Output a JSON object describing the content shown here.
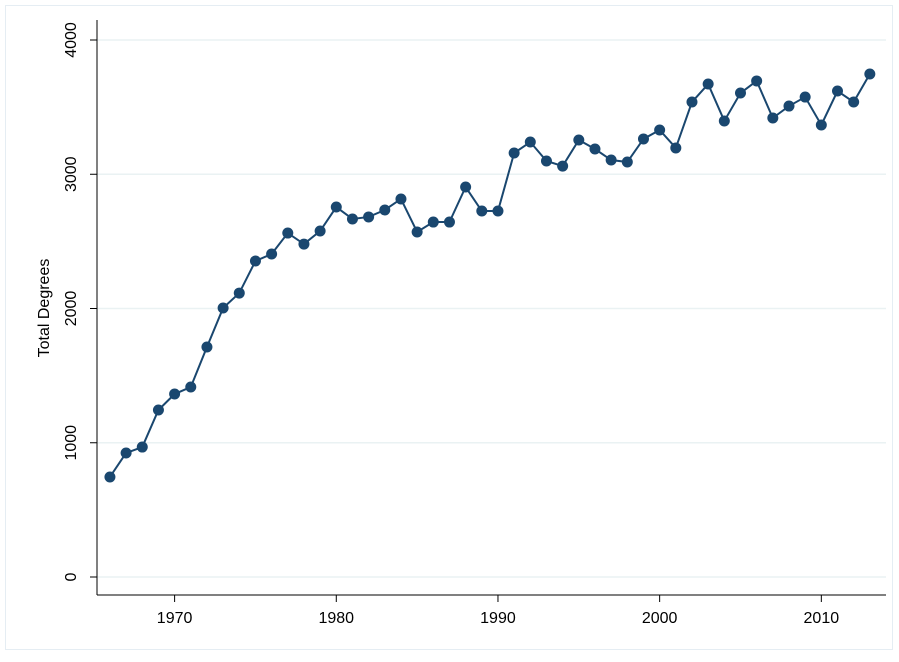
{
  "chart_data": {
    "type": "line",
    "y_label": "Total Degrees",
    "x": [
      1966,
      1967,
      1968,
      1969,
      1970,
      1971,
      1972,
      1973,
      1974,
      1975,
      1976,
      1977,
      1978,
      1979,
      1980,
      1981,
      1982,
      1983,
      1984,
      1985,
      1986,
      1987,
      1988,
      1989,
      1990,
      1991,
      1992,
      1993,
      1994,
      1995,
      1996,
      1997,
      1998,
      1999,
      2000,
      2001,
      2002,
      2003,
      2004,
      2005,
      2006,
      2007,
      2008,
      2009,
      2010,
      2011,
      2012,
      2013
    ],
    "series": [
      {
        "color": "#1a476f",
        "values": [
          745,
          924,
          968,
          1244,
          1363,
          1415,
          1713,
          2004,
          2115,
          2354,
          2406,
          2562,
          2480,
          2577,
          2756,
          2667,
          2682,
          2734,
          2816,
          2570,
          2644,
          2644,
          2905,
          2726,
          2726,
          3158,
          3240,
          3099,
          3061,
          3255,
          3188,
          3106,
          3091,
          3263,
          3330,
          3196,
          3538,
          3672,
          3397,
          3605,
          3695,
          3419,
          3508,
          3575,
          3367,
          3620,
          3538,
          3747
        ]
      }
    ],
    "xlim": [
      1965.2,
      2014
    ],
    "ylim": [
      -134,
      4149
    ],
    "xticks": [
      1970,
      1980,
      1990,
      2000,
      2010
    ],
    "yticks": [
      0,
      1000,
      2000,
      3000,
      4000
    ],
    "grid": true
  }
}
